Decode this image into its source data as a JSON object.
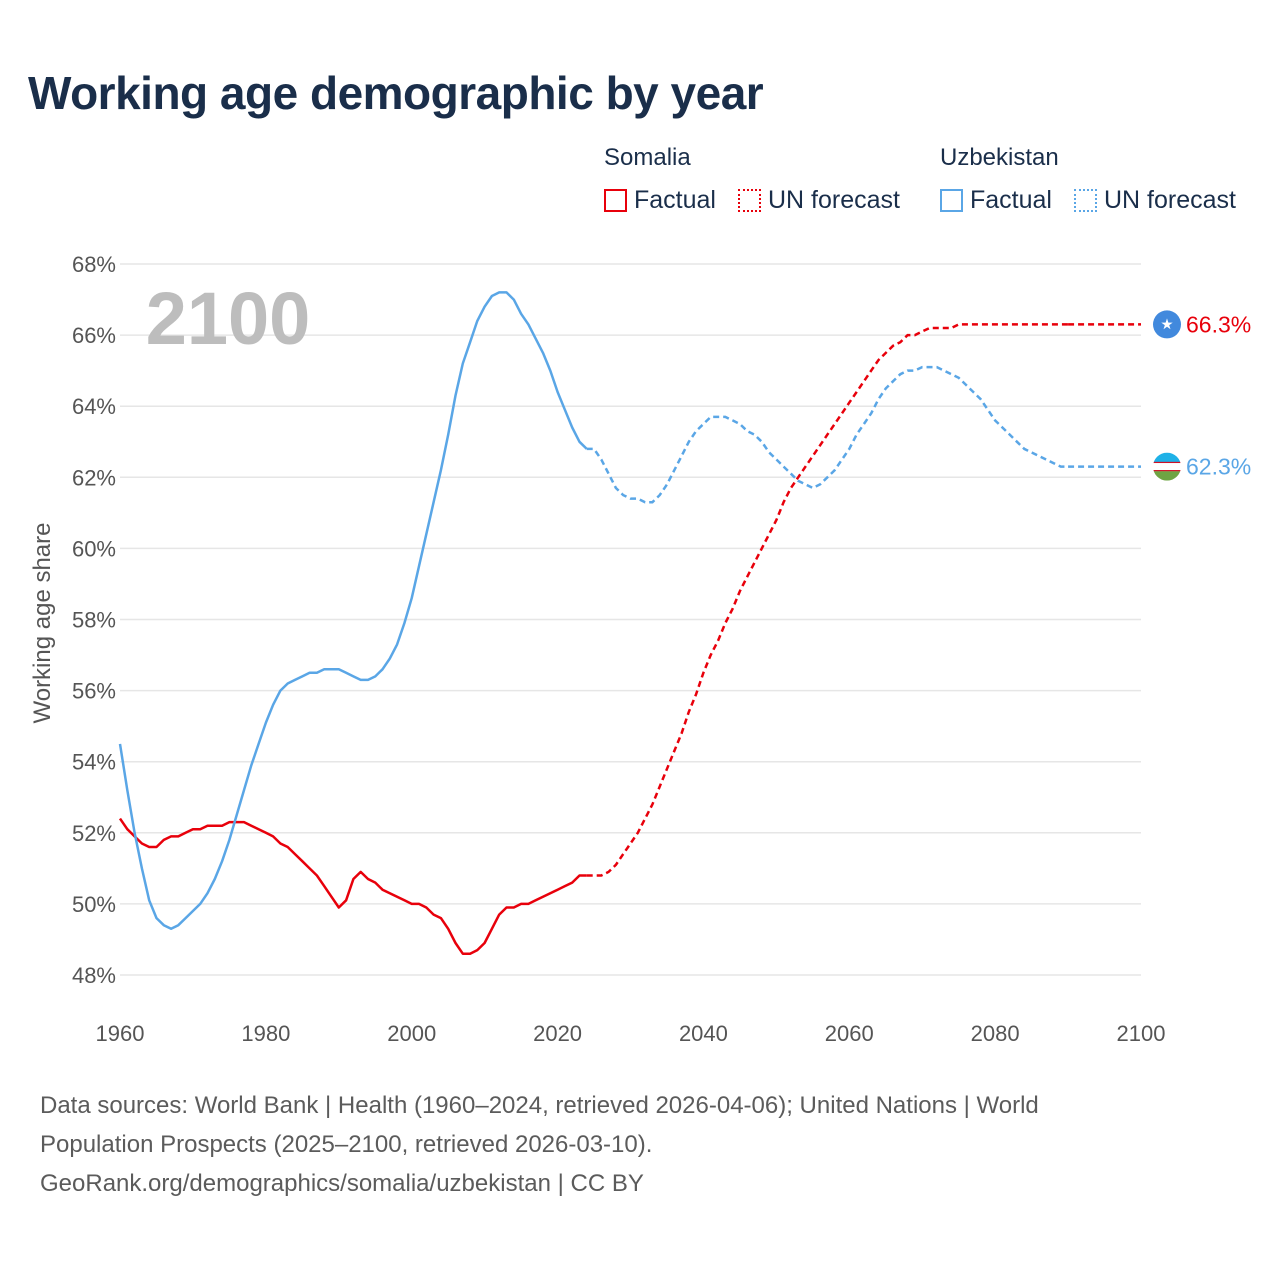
{
  "title": "Working age demographic by year",
  "legend": {
    "groups": [
      {
        "country": "Somalia",
        "factual_label": "Factual",
        "forecast_label": "UN forecast",
        "color": "#e8000b"
      },
      {
        "country": "Uzbekistan",
        "factual_label": "Factual",
        "forecast_label": "UN forecast",
        "color": "#5aa6e6"
      }
    ]
  },
  "year_watermark": "2100",
  "end_labels": {
    "somalia": "66.3%",
    "uzbekistan": "62.3%"
  },
  "footer": {
    "line1": "Data sources: World Bank | Health (1960–2024, retrieved 2026-04-06); United Nations | World",
    "line2": "Population Prospects (2025–2100, retrieved 2026-03-10).",
    "line3": "GeoRank.org/demographics/somalia/uzbekistan | CC BY"
  },
  "chart_data": {
    "type": "line",
    "title": "Working age demographic by year",
    "xlabel": "",
    "ylabel": "Working age share",
    "xlim": [
      1960,
      2100
    ],
    "ylim": [
      48,
      68
    ],
    "xticks": [
      1960,
      1980,
      2000,
      2020,
      2040,
      2060,
      2080,
      2100
    ],
    "yticks": [
      48,
      50,
      52,
      54,
      56,
      58,
      60,
      62,
      64,
      66,
      68
    ],
    "ytick_labels": [
      "48%",
      "50%",
      "52%",
      "54%",
      "56%",
      "58%",
      "60%",
      "62%",
      "64%",
      "66%",
      "68%"
    ],
    "factual_range": [
      1960,
      2024
    ],
    "forecast_range": [
      2025,
      2100
    ],
    "series": [
      {
        "name": "Somalia",
        "color": "#e8000b",
        "points": [
          [
            1960,
            52.4
          ],
          [
            1961,
            52.1
          ],
          [
            1962,
            51.9
          ],
          [
            1963,
            51.7
          ],
          [
            1964,
            51.6
          ],
          [
            1965,
            51.6
          ],
          [
            1966,
            51.8
          ],
          [
            1967,
            51.9
          ],
          [
            1968,
            51.9
          ],
          [
            1969,
            52.0
          ],
          [
            1970,
            52.1
          ],
          [
            1971,
            52.1
          ],
          [
            1972,
            52.2
          ],
          [
            1973,
            52.2
          ],
          [
            1974,
            52.2
          ],
          [
            1975,
            52.3
          ],
          [
            1976,
            52.3
          ],
          [
            1977,
            52.3
          ],
          [
            1978,
            52.2
          ],
          [
            1979,
            52.1
          ],
          [
            1980,
            52.0
          ],
          [
            1981,
            51.9
          ],
          [
            1982,
            51.7
          ],
          [
            1983,
            51.6
          ],
          [
            1984,
            51.4
          ],
          [
            1985,
            51.2
          ],
          [
            1986,
            51.0
          ],
          [
            1987,
            50.8
          ],
          [
            1988,
            50.5
          ],
          [
            1989,
            50.2
          ],
          [
            1990,
            49.9
          ],
          [
            1991,
            50.1
          ],
          [
            1992,
            50.7
          ],
          [
            1993,
            50.9
          ],
          [
            1994,
            50.7
          ],
          [
            1995,
            50.6
          ],
          [
            1996,
            50.4
          ],
          [
            1997,
            50.3
          ],
          [
            1998,
            50.2
          ],
          [
            1999,
            50.1
          ],
          [
            2000,
            50.0
          ],
          [
            2001,
            50.0
          ],
          [
            2002,
            49.9
          ],
          [
            2003,
            49.7
          ],
          [
            2004,
            49.6
          ],
          [
            2005,
            49.3
          ],
          [
            2006,
            48.9
          ],
          [
            2007,
            48.6
          ],
          [
            2008,
            48.6
          ],
          [
            2009,
            48.7
          ],
          [
            2010,
            48.9
          ],
          [
            2011,
            49.3
          ],
          [
            2012,
            49.7
          ],
          [
            2013,
            49.9
          ],
          [
            2014,
            49.9
          ],
          [
            2015,
            50.0
          ],
          [
            2016,
            50.0
          ],
          [
            2017,
            50.1
          ],
          [
            2018,
            50.2
          ],
          [
            2019,
            50.3
          ],
          [
            2020,
            50.4
          ],
          [
            2021,
            50.5
          ],
          [
            2022,
            50.6
          ],
          [
            2023,
            50.8
          ],
          [
            2024,
            50.8
          ],
          [
            2025,
            50.8
          ],
          [
            2026,
            50.8
          ],
          [
            2027,
            50.9
          ],
          [
            2028,
            51.1
          ],
          [
            2029,
            51.4
          ],
          [
            2030,
            51.7
          ],
          [
            2031,
            52.0
          ],
          [
            2032,
            52.4
          ],
          [
            2033,
            52.8
          ],
          [
            2034,
            53.3
          ],
          [
            2035,
            53.8
          ],
          [
            2036,
            54.3
          ],
          [
            2037,
            54.8
          ],
          [
            2038,
            55.4
          ],
          [
            2039,
            55.9
          ],
          [
            2040,
            56.5
          ],
          [
            2041,
            57.0
          ],
          [
            2042,
            57.4
          ],
          [
            2043,
            57.9
          ],
          [
            2044,
            58.3
          ],
          [
            2045,
            58.8
          ],
          [
            2046,
            59.2
          ],
          [
            2047,
            59.6
          ],
          [
            2048,
            60.0
          ],
          [
            2049,
            60.4
          ],
          [
            2050,
            60.8
          ],
          [
            2051,
            61.3
          ],
          [
            2052,
            61.7
          ],
          [
            2053,
            62.0
          ],
          [
            2054,
            62.3
          ],
          [
            2055,
            62.6
          ],
          [
            2056,
            62.9
          ],
          [
            2057,
            63.2
          ],
          [
            2058,
            63.5
          ],
          [
            2059,
            63.8
          ],
          [
            2060,
            64.1
          ],
          [
            2061,
            64.4
          ],
          [
            2062,
            64.7
          ],
          [
            2063,
            65.0
          ],
          [
            2064,
            65.3
          ],
          [
            2065,
            65.5
          ],
          [
            2066,
            65.7
          ],
          [
            2067,
            65.8
          ],
          [
            2068,
            66.0
          ],
          [
            2069,
            66.0
          ],
          [
            2070,
            66.1
          ],
          [
            2071,
            66.2
          ],
          [
            2072,
            66.2
          ],
          [
            2073,
            66.2
          ],
          [
            2074,
            66.2
          ],
          [
            2075,
            66.3
          ],
          [
            2076,
            66.3
          ],
          [
            2077,
            66.3
          ],
          [
            2078,
            66.3
          ],
          [
            2079,
            66.3
          ],
          [
            2080,
            66.3
          ],
          [
            2081,
            66.3
          ],
          [
            2082,
            66.3
          ],
          [
            2083,
            66.3
          ],
          [
            2084,
            66.3
          ],
          [
            2085,
            66.3
          ],
          [
            2086,
            66.3
          ],
          [
            2087,
            66.3
          ],
          [
            2088,
            66.3
          ],
          [
            2089,
            66.3
          ],
          [
            2090,
            66.3
          ]
        ]
      },
      {
        "name": "Uzbekistan",
        "color": "#5aa6e6",
        "points": [
          [
            1960,
            54.5
          ],
          [
            1961,
            53.2
          ],
          [
            1962,
            52.0
          ],
          [
            1963,
            51.0
          ],
          [
            1964,
            50.1
          ],
          [
            1965,
            49.6
          ],
          [
            1966,
            49.4
          ],
          [
            1967,
            49.3
          ],
          [
            1968,
            49.4
          ],
          [
            1969,
            49.6
          ],
          [
            1970,
            49.8
          ],
          [
            1971,
            50.0
          ],
          [
            1972,
            50.3
          ],
          [
            1973,
            50.7
          ],
          [
            1974,
            51.2
          ],
          [
            1975,
            51.8
          ],
          [
            1976,
            52.5
          ],
          [
            1977,
            53.2
          ],
          [
            1978,
            53.9
          ],
          [
            1979,
            54.5
          ],
          [
            1980,
            55.1
          ],
          [
            1981,
            55.6
          ],
          [
            1982,
            56.0
          ],
          [
            1983,
            56.2
          ],
          [
            1984,
            56.3
          ],
          [
            1985,
            56.4
          ],
          [
            1986,
            56.5
          ],
          [
            1987,
            56.5
          ],
          [
            1988,
            56.6
          ],
          [
            1989,
            56.6
          ],
          [
            1990,
            56.6
          ],
          [
            1991,
            56.5
          ],
          [
            1992,
            56.4
          ],
          [
            1993,
            56.3
          ],
          [
            1994,
            56.3
          ],
          [
            1995,
            56.4
          ],
          [
            1996,
            56.6
          ],
          [
            1997,
            56.9
          ],
          [
            1998,
            57.3
          ],
          [
            1999,
            57.9
          ],
          [
            2000,
            58.6
          ],
          [
            2001,
            59.5
          ],
          [
            2002,
            60.4
          ],
          [
            2003,
            61.3
          ],
          [
            2004,
            62.2
          ],
          [
            2005,
            63.2
          ],
          [
            2006,
            64.3
          ],
          [
            2007,
            65.2
          ],
          [
            2008,
            65.8
          ],
          [
            2009,
            66.4
          ],
          [
            2010,
            66.8
          ],
          [
            2011,
            67.1
          ],
          [
            2012,
            67.2
          ],
          [
            2013,
            67.2
          ],
          [
            2014,
            67.0
          ],
          [
            2015,
            66.6
          ],
          [
            2016,
            66.3
          ],
          [
            2017,
            65.9
          ],
          [
            2018,
            65.5
          ],
          [
            2019,
            65.0
          ],
          [
            2020,
            64.4
          ],
          [
            2021,
            63.9
          ],
          [
            2022,
            63.4
          ],
          [
            2023,
            63.0
          ],
          [
            2024,
            62.8
          ],
          [
            2025,
            62.8
          ],
          [
            2026,
            62.5
          ],
          [
            2027,
            62.1
          ],
          [
            2028,
            61.7
          ],
          [
            2029,
            61.5
          ],
          [
            2030,
            61.4
          ],
          [
            2031,
            61.4
          ],
          [
            2032,
            61.3
          ],
          [
            2033,
            61.3
          ],
          [
            2034,
            61.5
          ],
          [
            2035,
            61.8
          ],
          [
            2036,
            62.2
          ],
          [
            2037,
            62.6
          ],
          [
            2038,
            63.0
          ],
          [
            2039,
            63.3
          ],
          [
            2040,
            63.5
          ],
          [
            2041,
            63.7
          ],
          [
            2042,
            63.7
          ],
          [
            2043,
            63.7
          ],
          [
            2044,
            63.6
          ],
          [
            2045,
            63.5
          ],
          [
            2046,
            63.3
          ],
          [
            2047,
            63.2
          ],
          [
            2048,
            63.0
          ],
          [
            2049,
            62.7
          ],
          [
            2050,
            62.5
          ],
          [
            2051,
            62.3
          ],
          [
            2052,
            62.1
          ],
          [
            2053,
            61.9
          ],
          [
            2054,
            61.8
          ],
          [
            2055,
            61.7
          ],
          [
            2056,
            61.8
          ],
          [
            2057,
            62.0
          ],
          [
            2058,
            62.2
          ],
          [
            2059,
            62.5
          ],
          [
            2060,
            62.8
          ],
          [
            2061,
            63.2
          ],
          [
            2062,
            63.5
          ],
          [
            2063,
            63.8
          ],
          [
            2064,
            64.2
          ],
          [
            2065,
            64.5
          ],
          [
            2066,
            64.7
          ],
          [
            2067,
            64.9
          ],
          [
            2068,
            65.0
          ],
          [
            2069,
            65.0
          ],
          [
            2070,
            65.1
          ],
          [
            2071,
            65.1
          ],
          [
            2072,
            65.1
          ],
          [
            2073,
            65.0
          ],
          [
            2074,
            64.9
          ],
          [
            2075,
            64.8
          ],
          [
            2076,
            64.6
          ],
          [
            2077,
            64.4
          ],
          [
            2078,
            64.2
          ],
          [
            2079,
            63.9
          ],
          [
            2080,
            63.6
          ],
          [
            2081,
            63.4
          ],
          [
            2082,
            63.2
          ],
          [
            2083,
            63.0
          ],
          [
            2084,
            62.8
          ],
          [
            2085,
            62.7
          ],
          [
            2086,
            62.6
          ],
          [
            2087,
            62.5
          ],
          [
            2088,
            62.4
          ],
          [
            2089,
            62.3
          ],
          [
            2090,
            62.3
          ]
        ]
      }
    ]
  }
}
